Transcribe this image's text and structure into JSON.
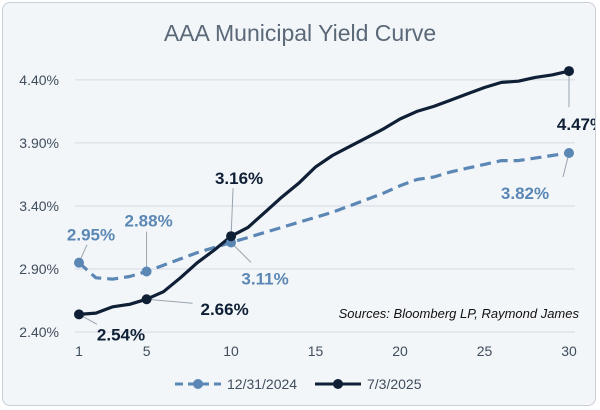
{
  "chart_data": {
    "type": "line",
    "title": "AAA Municipal Yield Curve",
    "source": "Sources: Bloomberg LP, Raymond James",
    "x": [
      1,
      2,
      3,
      4,
      5,
      6,
      7,
      8,
      9,
      10,
      11,
      12,
      13,
      14,
      15,
      16,
      17,
      18,
      19,
      20,
      21,
      22,
      23,
      24,
      25,
      26,
      27,
      28,
      29,
      30
    ],
    "x_ticks": [
      "1",
      "5",
      "10",
      "15",
      "20",
      "25",
      "30"
    ],
    "x_tick_values": [
      1,
      5,
      10,
      15,
      20,
      25,
      30
    ],
    "y_ticks": [
      "2.40%",
      "2.90%",
      "3.40%",
      "3.90%",
      "4.40%"
    ],
    "y_tick_values": [
      2.4,
      2.9,
      3.4,
      3.9,
      4.4
    ],
    "ylim": [
      2.4,
      4.55
    ],
    "grid": true,
    "legend_position": "bottom",
    "series": [
      {
        "name": "12/31/2024",
        "color": "#5b87b5",
        "dashed": true,
        "values": [
          2.95,
          2.83,
          2.82,
          2.84,
          2.88,
          2.93,
          2.98,
          3.03,
          3.07,
          3.11,
          3.15,
          3.19,
          3.23,
          3.27,
          3.31,
          3.35,
          3.4,
          3.45,
          3.5,
          3.56,
          3.61,
          3.63,
          3.67,
          3.7,
          3.73,
          3.76,
          3.76,
          3.78,
          3.8,
          3.82
        ]
      },
      {
        "name": "7/3/2025",
        "color": "#0f1f35",
        "dashed": false,
        "values": [
          2.54,
          2.55,
          2.6,
          2.62,
          2.66,
          2.72,
          2.83,
          2.95,
          3.05,
          3.16,
          3.23,
          3.35,
          3.47,
          3.58,
          3.71,
          3.8,
          3.87,
          3.94,
          4.01,
          4.09,
          4.15,
          4.19,
          4.24,
          4.29,
          4.34,
          4.38,
          4.39,
          4.42,
          4.44,
          4.47
        ]
      }
    ],
    "annotations": [
      {
        "series": 0,
        "x": 1,
        "text": "2.95%"
      },
      {
        "series": 0,
        "x": 5,
        "text": "2.88%"
      },
      {
        "series": 0,
        "x": 10,
        "text": "3.11%"
      },
      {
        "series": 0,
        "x": 30,
        "text": "3.82%"
      },
      {
        "series": 1,
        "x": 1,
        "text": "2.54%"
      },
      {
        "series": 1,
        "x": 5,
        "text": "2.66%"
      },
      {
        "series": 1,
        "x": 10,
        "text": "3.16%"
      },
      {
        "series": 1,
        "x": 30,
        "text": "4.47%"
      }
    ]
  }
}
